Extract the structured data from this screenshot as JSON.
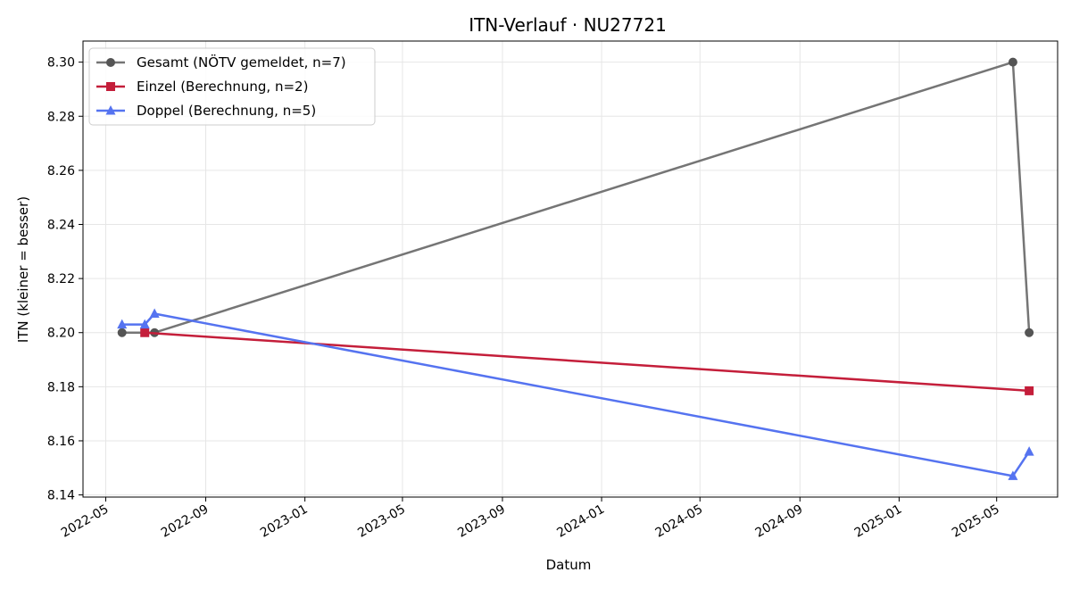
{
  "chart_data": {
    "type": "line",
    "title": "ITN-Verlauf · NU27721",
    "xlabel": "Datum",
    "ylabel": "ITN  (kleiner = besser)",
    "xlim": [
      "2022-04-03",
      "2025-07-15"
    ],
    "ylim": [
      8.1392,
      8.3078
    ],
    "grid": true,
    "legend_position": "top-left",
    "x_ticks": [
      "2022-05",
      "2022-09",
      "2023-01",
      "2023-05",
      "2023-09",
      "2024-01",
      "2024-05",
      "2024-09",
      "2025-01",
      "2025-05"
    ],
    "y_ticks": [
      "8.14",
      "8.16",
      "8.18",
      "8.20",
      "8.22",
      "8.24",
      "8.26",
      "8.28",
      "8.30"
    ],
    "series": [
      {
        "name": "Gesamt (NÖTV gemeldet, n=7)",
        "color": "#757575",
        "marker": "circle",
        "points": [
          {
            "x": "2022-05-21",
            "y": 8.2
          },
          {
            "x": "2022-06-30",
            "y": 8.2
          },
          {
            "x": "2025-05-21",
            "y": 8.3
          },
          {
            "x": "2025-06-10",
            "y": 8.2
          }
        ]
      },
      {
        "name": "Einzel (Berechnung, n=2)",
        "color": "#c41e3a",
        "marker": "square",
        "points": [
          {
            "x": "2022-06-18",
            "y": 8.2
          },
          {
            "x": "2025-06-10",
            "y": 8.1785
          }
        ]
      },
      {
        "name": "Doppel (Berechnung, n=5)",
        "color": "#5573f0",
        "marker": "triangle",
        "points": [
          {
            "x": "2022-05-21",
            "y": 8.203
          },
          {
            "x": "2022-06-18",
            "y": 8.203
          },
          {
            "x": "2022-06-30",
            "y": 8.207
          },
          {
            "x": "2025-05-21",
            "y": 8.147
          },
          {
            "x": "2025-06-10",
            "y": 8.156
          }
        ]
      }
    ]
  }
}
